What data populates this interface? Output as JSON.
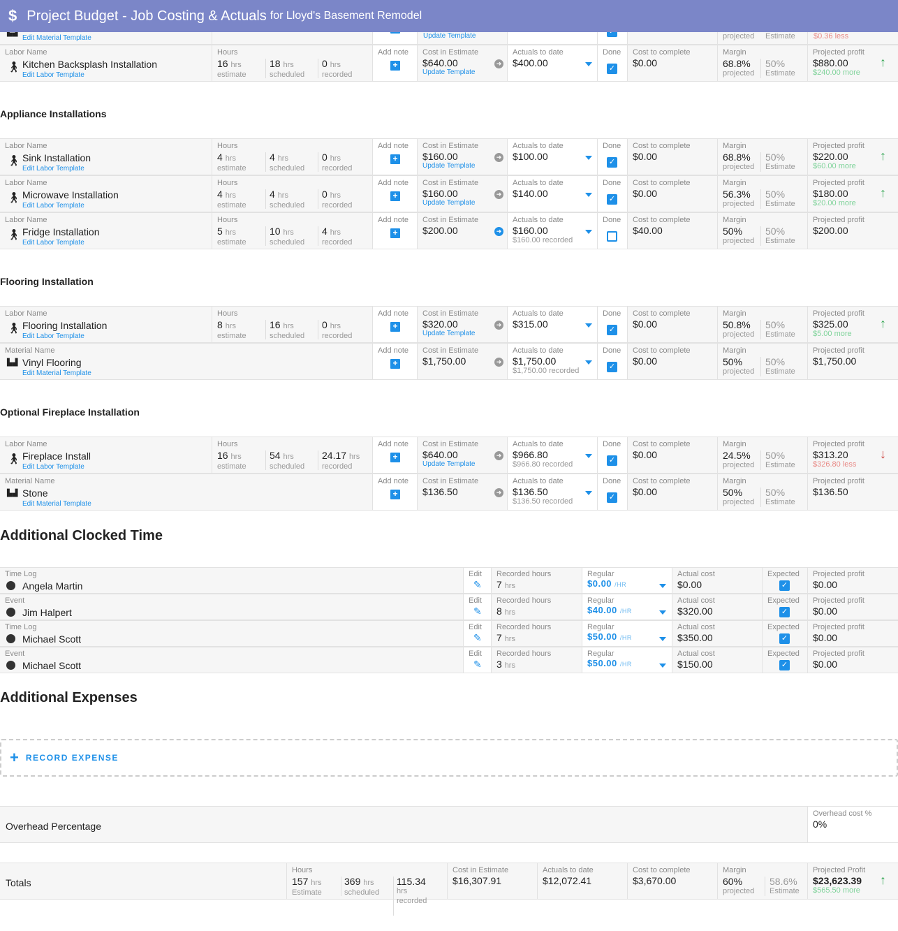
{
  "header": {
    "icon": "dollar-icon",
    "title": "Project Budget - Job Costing & Actuals",
    "subtitle": "for Lloyd's Basement Remodel"
  },
  "partial_row": {
    "link": "Edit Material Template",
    "cost_link": "Update Template",
    "margin_projected": "projected",
    "margin_estimate": "Estimate",
    "profit_delta": "$0.36 less"
  },
  "labels": {
    "labor_name": "Labor Name",
    "material_name": "Material Name",
    "hours": "Hours",
    "hrs": "hrs",
    "estimate": "estimate",
    "scheduled": "scheduled",
    "recorded": "recorded",
    "add_note": "Add note",
    "cost_in_estimate": "Cost in Estimate",
    "actuals_to_date": "Actuals to date",
    "done": "Done",
    "cost_to_complete": "Cost to complete",
    "margin": "Margin",
    "projected": "projected",
    "Estimate": "Estimate",
    "projected_profit": "Projected profit",
    "edit_labor": "Edit Labor Template",
    "edit_material": "Edit Material Template",
    "update_template": "Update Template"
  },
  "sections": [
    {
      "title": "",
      "items": [
        {
          "type": "labor",
          "name": "Kitchen Backsplash Installation",
          "hours": [
            "16",
            "18",
            "0"
          ],
          "cost": "$640.00",
          "update": true,
          "arrow": "gray",
          "actual": "$400.00",
          "actual_sub": "",
          "done": true,
          "ctc": "$0.00",
          "margin": "68.8%",
          "margin_est": "50%",
          "profit": "$880.00",
          "delta": "$240.00 more",
          "trend": "up"
        }
      ]
    },
    {
      "title": "Appliance Installations",
      "items": [
        {
          "type": "labor",
          "name": "Sink Installation",
          "hours": [
            "4",
            "4",
            "0"
          ],
          "cost": "$160.00",
          "update": true,
          "arrow": "gray",
          "actual": "$100.00",
          "actual_sub": "",
          "done": true,
          "ctc": "$0.00",
          "margin": "68.8%",
          "margin_est": "50%",
          "profit": "$220.00",
          "delta": "$60.00 more",
          "trend": "up"
        },
        {
          "type": "labor",
          "name": "Microwave Installation",
          "hours": [
            "4",
            "4",
            "0"
          ],
          "cost": "$160.00",
          "update": true,
          "arrow": "gray",
          "actual": "$140.00",
          "actual_sub": "",
          "done": true,
          "ctc": "$0.00",
          "margin": "56.3%",
          "margin_est": "50%",
          "profit": "$180.00",
          "delta": "$20.00 more",
          "trend": "up"
        },
        {
          "type": "labor",
          "name": "Fridge Installation",
          "hours": [
            "5",
            "10",
            "4"
          ],
          "cost": "$200.00",
          "update": false,
          "arrow": "blue",
          "actual": "$160.00",
          "actual_sub": "$160.00 recorded",
          "done": false,
          "ctc": "$40.00",
          "margin": "50%",
          "margin_est": "50%",
          "profit": "$200.00",
          "delta": "",
          "trend": ""
        }
      ]
    },
    {
      "title": "Flooring Installation",
      "items": [
        {
          "type": "labor",
          "name": "Flooring Installation",
          "hours": [
            "8",
            "16",
            "0"
          ],
          "cost": "$320.00",
          "update": true,
          "arrow": "gray",
          "actual": "$315.00",
          "actual_sub": "",
          "done": true,
          "ctc": "$0.00",
          "margin": "50.8%",
          "margin_est": "50%",
          "profit": "$325.00",
          "delta": "$5.00 more",
          "trend": "up"
        },
        {
          "type": "material",
          "name": "Vinyl Flooring",
          "cost": "$1,750.00",
          "update": false,
          "arrow": "gray",
          "actual": "$1,750.00",
          "actual_sub": "$1,750.00 recorded",
          "done": true,
          "ctc": "$0.00",
          "margin": "50%",
          "margin_est": "50%",
          "profit": "$1,750.00",
          "delta": "",
          "trend": ""
        }
      ]
    },
    {
      "title": "Optional Fireplace Installation",
      "items": [
        {
          "type": "labor",
          "name": "Fireplace Install",
          "hours": [
            "16",
            "54",
            "24.17"
          ],
          "cost": "$640.00",
          "update": true,
          "arrow": "gray",
          "actual": "$966.80",
          "actual_sub": "$966.80 recorded",
          "done": true,
          "ctc": "$0.00",
          "margin": "24.5%",
          "margin_est": "50%",
          "profit": "$313.20",
          "delta": "$326.80 less",
          "trend": "down"
        },
        {
          "type": "material",
          "name": "Stone",
          "cost": "$136.50",
          "update": false,
          "arrow": "gray",
          "actual": "$136.50",
          "actual_sub": "$136.50 recorded",
          "done": true,
          "ctc": "$0.00",
          "margin": "50%",
          "margin_est": "50%",
          "profit": "$136.50",
          "delta": "",
          "trend": ""
        }
      ]
    }
  ],
  "clocked": {
    "title": "Additional Clocked Time",
    "labels": {
      "edit": "Edit",
      "recorded_hours": "Recorded hours",
      "regular": "Regular",
      "per_hr": "/HR",
      "actual_cost": "Actual cost",
      "expected": "Expected",
      "projected_profit": "Projected profit",
      "hrs": "hrs"
    },
    "rows": [
      {
        "kind": "Time Log",
        "name": "Angela Martin",
        "hours": "7",
        "rate": "$0.00",
        "cost": "$0.00",
        "expected": true,
        "profit": "$0.00"
      },
      {
        "kind": "Event",
        "name": "Jim Halpert",
        "hours": "8",
        "rate": "$40.00",
        "cost": "$320.00",
        "expected": true,
        "profit": "$0.00"
      },
      {
        "kind": "Time Log",
        "name": "Michael Scott",
        "hours": "7",
        "rate": "$50.00",
        "cost": "$350.00",
        "expected": true,
        "profit": "$0.00"
      },
      {
        "kind": "Event",
        "name": "Michael Scott",
        "hours": "3",
        "rate": "$50.00",
        "cost": "$150.00",
        "expected": true,
        "profit": "$0.00"
      }
    ]
  },
  "expenses": {
    "title": "Additional Expenses",
    "record_label": "RECORD EXPENSE"
  },
  "overhead": {
    "label": "Overhead Percentage",
    "field_label": "Overhead cost %",
    "value": "0%"
  },
  "totals": {
    "label": "Totals",
    "hours_label": "Hours",
    "est": "157",
    "sched": "369",
    "rec": "115.34",
    "hrs": "hrs",
    "Estimate": "Estimate",
    "scheduled": "scheduled",
    "recorded": "recorded",
    "cost_label": "Cost in Estimate",
    "cost": "$16,307.91",
    "actual_label": "Actuals to date",
    "actual": "$12,072.41",
    "ctc_label": "Cost to complete",
    "ctc": "$3,670.00",
    "margin_label": "Margin",
    "margin": "60%",
    "projected": "projected",
    "margin_est": "58.6%",
    "profit_label": "Projected Profit",
    "profit": "$23,623.39",
    "delta": "$565.50 more",
    "trend": "up"
  },
  "colors": {
    "header": "#7b86c8",
    "accent": "#1e90e8",
    "positive": "#2ea44f",
    "negative": "#d9534f"
  }
}
